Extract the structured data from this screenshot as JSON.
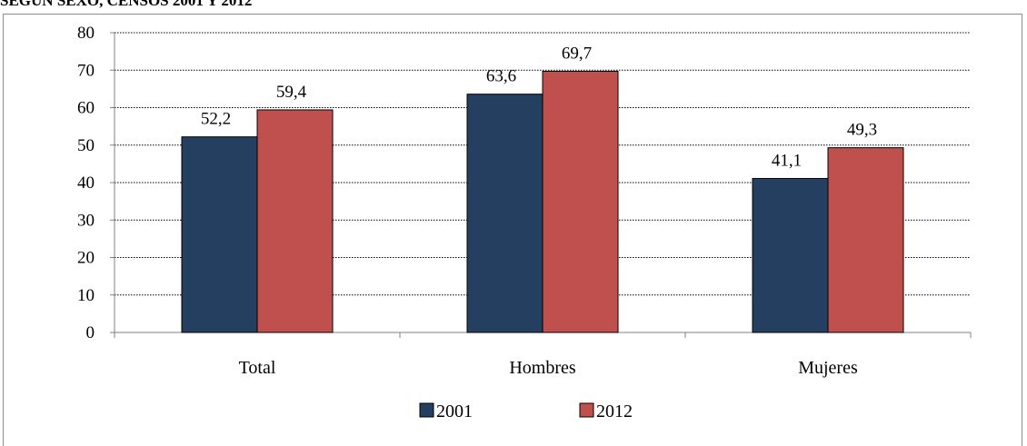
{
  "header": {
    "title_fragment": "SEGÚN SEXO, CENSOS 2001 Y 2012"
  },
  "chart_data": {
    "type": "bar",
    "categories": [
      "Total",
      "Hombres",
      "Mujeres"
    ],
    "series": [
      {
        "name": "2001",
        "values": [
          52.2,
          63.6,
          41.1
        ],
        "labels": [
          "52,2",
          "63,6",
          "41,1"
        ],
        "color": "#243f60"
      },
      {
        "name": "2012",
        "values": [
          59.4,
          69.7,
          49.3
        ],
        "labels": [
          "59,4",
          "69,7",
          "49,3"
        ],
        "color": "#c0504d"
      }
    ],
    "ylim": [
      0,
      80
    ],
    "yticks": [
      0,
      10,
      20,
      30,
      40,
      50,
      60,
      70,
      80
    ],
    "grid": true,
    "legend_position": "bottom",
    "title": "",
    "xlabel": "",
    "ylabel": ""
  }
}
